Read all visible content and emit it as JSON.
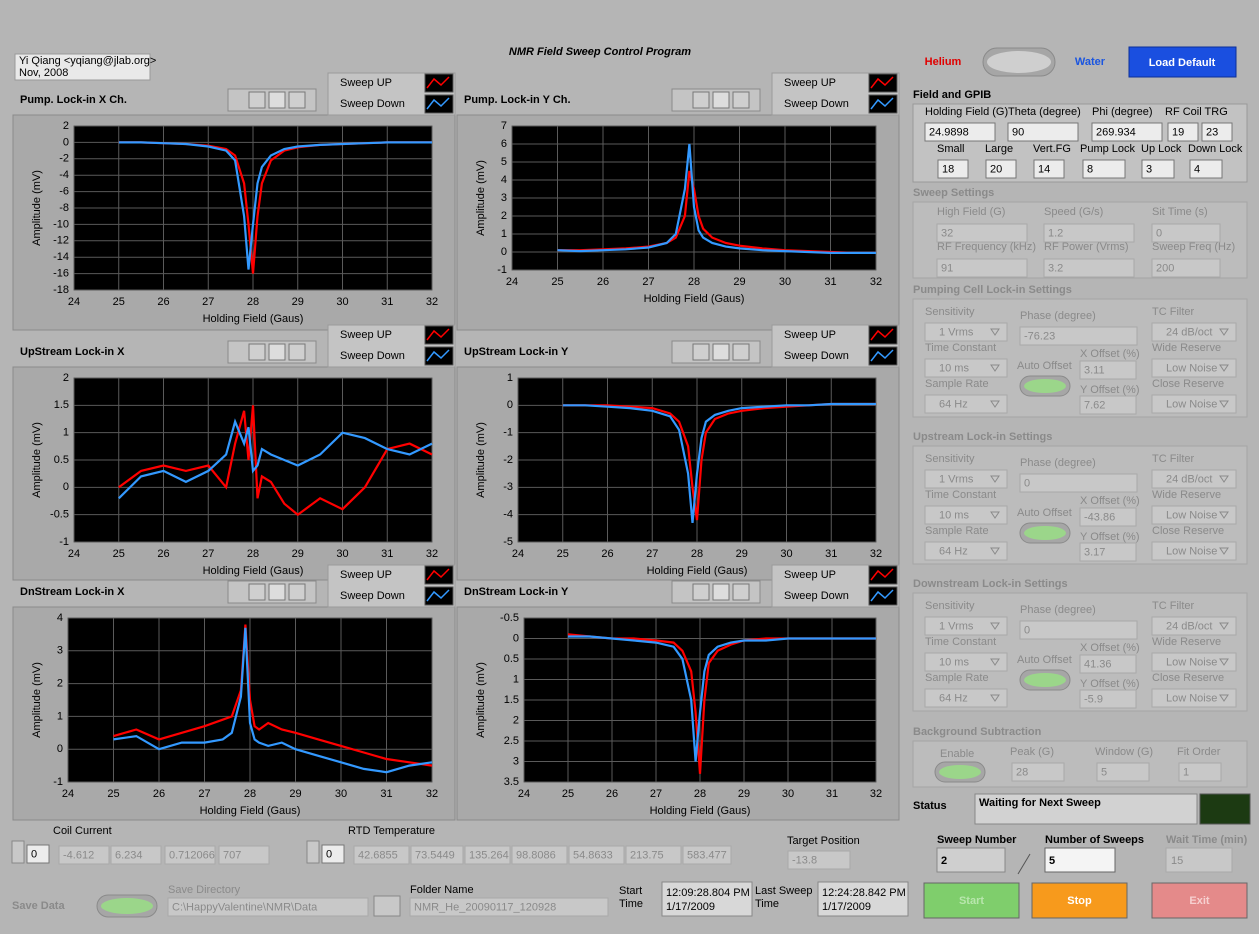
{
  "header": {
    "title": "NMR Field Sweep Control Program",
    "author": [
      "Yi Qiang <yqiang@jlab.org>",
      "Nov, 2008"
    ]
  },
  "mode": {
    "left": "Helium",
    "right": "Water"
  },
  "load_default": "Load Default",
  "graphs": [
    {
      "type": "line",
      "title": "Pump. Lock-in X Ch.",
      "x_label": "Holding Field (Gaus)",
      "y_label": "Amplitude (mV)",
      "x": [
        25,
        25.5,
        26,
        26.5,
        27,
        27.4,
        27.6,
        27.8,
        27.9,
        28,
        28.1,
        28.2,
        28.4,
        28.7,
        29,
        29.5,
        30,
        30.5,
        31,
        31.5,
        32
      ],
      "series": [
        {
          "name": "Sweep UP",
          "color": "#ff0000",
          "values": [
            0,
            0,
            -0.1,
            -0.2,
            -0.4,
            -0.8,
            -1.6,
            -5,
            -10,
            -16,
            -9,
            -5,
            -2.2,
            -1,
            -0.6,
            -0.3,
            -0.2,
            -0.1,
            0,
            0,
            0
          ]
        },
        {
          "name": "Sweep Down",
          "color": "#3399ff",
          "values": [
            0,
            0,
            -0.1,
            -0.2,
            -0.5,
            -1,
            -2.2,
            -9,
            -15.5,
            -10,
            -5,
            -3,
            -1.6,
            -0.8,
            -0.5,
            -0.3,
            -0.2,
            -0.1,
            0,
            0,
            0
          ]
        }
      ],
      "xlim": [
        24,
        32
      ],
      "xticks": [
        24,
        25,
        26,
        27,
        28,
        29,
        30,
        31,
        32
      ],
      "ylim": [
        -18,
        2
      ],
      "yticks": [
        -18,
        -16,
        -14,
        -12,
        -10,
        -8,
        -6,
        -4,
        -2,
        0,
        2
      ],
      "grid": true
    },
    {
      "type": "line",
      "title": "Pump. Lock-in Y Ch.",
      "x_label": "Holding Field (Gaus)",
      "y_label": "Amplitude (mV)",
      "x": [
        25,
        25.5,
        26,
        26.5,
        27,
        27.4,
        27.6,
        27.8,
        27.9,
        28,
        28.1,
        28.2,
        28.4,
        28.7,
        29,
        29.5,
        30,
        30.5,
        31,
        31.5,
        32
      ],
      "series": [
        {
          "name": "Sweep UP",
          "color": "#ff0000",
          "values": [
            0.1,
            0.1,
            0.15,
            0.2,
            0.3,
            0.5,
            0.8,
            2,
            4.5,
            3.5,
            2,
            1.3,
            0.8,
            0.5,
            0.35,
            0.2,
            0.1,
            0.05,
            0,
            -0.05,
            -0.05
          ]
        },
        {
          "name": "Sweep Down",
          "color": "#3399ff",
          "values": [
            0.1,
            0.05,
            0.1,
            0.15,
            0.25,
            0.5,
            1,
            3.5,
            6,
            2.5,
            1.2,
            0.8,
            0.5,
            0.3,
            0.2,
            0.1,
            0.05,
            0,
            -0.05,
            -0.05,
            -0.05
          ]
        }
      ],
      "xlim": [
        24,
        32
      ],
      "xticks": [
        24,
        25,
        26,
        27,
        28,
        29,
        30,
        31,
        32
      ],
      "ylim": [
        -1,
        7
      ],
      "yticks": [
        -1,
        0,
        1,
        2,
        3,
        4,
        5,
        6,
        7
      ],
      "grid": true
    },
    {
      "type": "line",
      "title": "UpStream Lock-in X",
      "x_label": "Holding Field (Gaus)",
      "y_label": "Amplitude (mV)",
      "x": [
        25,
        25.5,
        26,
        26.5,
        27,
        27.4,
        27.6,
        27.8,
        27.9,
        28,
        28.1,
        28.2,
        28.4,
        28.7,
        29,
        29.5,
        30,
        30.5,
        31,
        31.5,
        32
      ],
      "series": [
        {
          "name": "Sweep UP",
          "color": "#ff0000",
          "values": [
            0,
            0.3,
            0.4,
            0.3,
            0.4,
            0,
            0.8,
            1.4,
            0.5,
            1.5,
            -0.2,
            0.2,
            0.1,
            -0.3,
            -0.5,
            -0.2,
            -0.4,
            0,
            0.7,
            0.8,
            0.6
          ]
        },
        {
          "name": "Sweep Down",
          "color": "#3399ff",
          "values": [
            -0.2,
            0.2,
            0.3,
            0.1,
            0.3,
            0.6,
            1.2,
            0.8,
            1.1,
            0.3,
            0.4,
            0.7,
            0.6,
            0.5,
            0.4,
            0.6,
            1,
            0.9,
            0.7,
            0.6,
            0.8
          ]
        }
      ],
      "xlim": [
        24,
        32
      ],
      "xticks": [
        24,
        25,
        26,
        27,
        28,
        29,
        30,
        31,
        32
      ],
      "ylim": [
        -1,
        2
      ],
      "yticks": [
        -1,
        -0.5,
        0,
        0.5,
        1,
        1.5,
        2
      ],
      "grid": true
    },
    {
      "type": "line",
      "title": "UpStream Lock-in Y",
      "x_label": "Holding Field (Gaus)",
      "y_label": "Amplitude (mV)",
      "x": [
        25,
        25.5,
        26,
        26.5,
        27,
        27.4,
        27.6,
        27.8,
        27.9,
        28,
        28.1,
        28.2,
        28.4,
        28.7,
        29,
        29.5,
        30,
        30.5,
        31,
        31.5,
        32
      ],
      "series": [
        {
          "name": "Sweep UP",
          "color": "#ff0000",
          "values": [
            0,
            0,
            0,
            -0.05,
            -0.1,
            -0.3,
            -0.6,
            -1.5,
            -3,
            -4.2,
            -2,
            -1,
            -0.5,
            -0.3,
            -0.2,
            -0.1,
            -0.05,
            0,
            0.05,
            0.05,
            0.05
          ]
        },
        {
          "name": "Sweep Down",
          "color": "#3399ff",
          "values": [
            0,
            0,
            -0.05,
            -0.1,
            -0.2,
            -0.4,
            -0.9,
            -2.5,
            -4.3,
            -2.5,
            -1.2,
            -0.6,
            -0.35,
            -0.2,
            -0.1,
            -0.05,
            0,
            0,
            0.05,
            0.05,
            0.05
          ]
        }
      ],
      "xlim": [
        24,
        32
      ],
      "xticks": [
        24,
        25,
        26,
        27,
        28,
        29,
        30,
        31,
        32
      ],
      "ylim": [
        -5,
        1
      ],
      "yticks": [
        -5,
        -4,
        -3,
        -2,
        -1,
        0,
        1
      ],
      "grid": true
    },
    {
      "type": "line",
      "title": "DnStream Lock-in X",
      "x_label": "Holding Field (Gaus)",
      "y_label": "Amplitude (mV)",
      "x": [
        25,
        25.5,
        26,
        26.5,
        27,
        27.4,
        27.6,
        27.8,
        27.9,
        28,
        28.1,
        28.2,
        28.4,
        28.7,
        29,
        29.5,
        30,
        30.5,
        31,
        31.5,
        32
      ],
      "series": [
        {
          "name": "Sweep UP",
          "color": "#ff0000",
          "values": [
            0.4,
            0.6,
            0.3,
            0.5,
            0.7,
            0.9,
            1,
            1.8,
            3.8,
            1.5,
            0.7,
            0.6,
            0.8,
            0.6,
            0.5,
            0.3,
            0.1,
            -0.1,
            -0.3,
            -0.4,
            -0.5
          ]
        },
        {
          "name": "Sweep Down",
          "color": "#3399ff",
          "values": [
            0.3,
            0.4,
            0,
            0.2,
            0.2,
            0.3,
            0.5,
            1.6,
            3.7,
            0.8,
            0.3,
            0.2,
            0.1,
            0.2,
            0,
            -0.2,
            -0.4,
            -0.6,
            -0.7,
            -0.5,
            -0.4
          ]
        }
      ],
      "xlim": [
        24,
        32
      ],
      "xticks": [
        24,
        25,
        26,
        27,
        28,
        29,
        30,
        31,
        32
      ],
      "ylim": [
        -1,
        4
      ],
      "yticks": [
        -1,
        0,
        1,
        2,
        3,
        4
      ],
      "grid": true
    },
    {
      "type": "line",
      "title": "DnStream Lock-in Y",
      "x_label": "Holding Field (Gaus)",
      "y_label": "Amplitude (mV)",
      "x": [
        25,
        25.5,
        26,
        26.5,
        27,
        27.4,
        27.6,
        27.8,
        27.9,
        28,
        28.1,
        28.2,
        28.4,
        28.7,
        29,
        29.5,
        30,
        30.5,
        31,
        31.5,
        32
      ],
      "series": [
        {
          "name": "Sweep UP",
          "color": "#ff0000",
          "values": [
            -0.1,
            -0.05,
            0,
            0,
            0.05,
            0.1,
            0.3,
            0.8,
            1.8,
            3.3,
            1.5,
            0.6,
            0.3,
            0.15,
            0.05,
            0,
            0,
            0,
            0,
            0,
            0
          ]
        },
        {
          "name": "Sweep Down",
          "color": "#3399ff",
          "values": [
            -0.05,
            -0.05,
            0,
            0.05,
            0.1,
            0.2,
            0.5,
            1.5,
            3,
            1.8,
            0.8,
            0.4,
            0.2,
            0.1,
            0.05,
            0.05,
            0,
            0,
            0,
            0,
            0
          ]
        }
      ],
      "xlim": [
        24,
        32
      ],
      "xticks": [
        24,
        25,
        26,
        27,
        28,
        29,
        30,
        31,
        32
      ],
      "ylim": [
        3.5,
        -0.5
      ],
      "yticks": [
        -0.5,
        0,
        0.5,
        1,
        1.5,
        2,
        2.5,
        3,
        3.5
      ],
      "grid": true
    }
  ],
  "field_gpib": {
    "title": "Field and GPIB",
    "fields": [
      {
        "label": "Holding Field (G)",
        "value": "24.9898"
      },
      {
        "label": "Theta (degree)",
        "value": "90"
      },
      {
        "label": "Phi (degree)",
        "value": "269.934"
      },
      {
        "label": "Small",
        "value": "18"
      },
      {
        "label": "Large",
        "value": "20"
      },
      {
        "label": "Vert.FG",
        "value": "14"
      },
      {
        "label": "Pump Lock",
        "value": "8"
      },
      {
        "label": "Up Lock",
        "value": "3"
      },
      {
        "label": "Down Lock",
        "value": "4"
      }
    ],
    "rf_coil_trg": {
      "label": "RF Coil TRG",
      "values": [
        "19",
        "23"
      ]
    }
  },
  "sweep_settings": {
    "title": "Sweep Settings",
    "fields": [
      {
        "label": "High Field (G)",
        "value": "32"
      },
      {
        "label": "Speed (G/s)",
        "value": "1.2"
      },
      {
        "label": "Sit Time (s)",
        "value": "0"
      },
      {
        "label": "RF Frequency (kHz)",
        "value": "91"
      },
      {
        "label": "RF Power (Vrms)",
        "value": "3.2"
      },
      {
        "label": "Sweep Freq (Hz)",
        "value": "200"
      }
    ]
  },
  "lockins": [
    {
      "title": "Pumping Cell Lock-in Settings",
      "sensitivity": {
        "label": "Sensitivity",
        "value": "1 Vrms"
      },
      "time_constant": {
        "label": "Time Constant",
        "value": "10 ms"
      },
      "sample_rate": {
        "label": "Sample Rate",
        "value": "64 Hz"
      },
      "phase": {
        "label": "Phase (degree)",
        "value": "-76.23"
      },
      "auto_offset": "Auto Offset",
      "x_offset": {
        "label": "X Offset (%)",
        "value": "3.11"
      },
      "y_offset": {
        "label": "Y Offset (%)",
        "value": "7.62"
      },
      "tc_filter": {
        "label": "TC Filter",
        "value": "24 dB/oct"
      },
      "wide_reserve": {
        "label": "Wide Reserve",
        "value": "Low Noise"
      },
      "close_reserve": {
        "label": "Close Reserve",
        "value": "Low Noise"
      }
    },
    {
      "title": "Upstream Lock-in Settings",
      "sensitivity": {
        "label": "Sensitivity",
        "value": "1 Vrms"
      },
      "time_constant": {
        "label": "Time Constant",
        "value": "10 ms"
      },
      "sample_rate": {
        "label": "Sample Rate",
        "value": "64 Hz"
      },
      "phase": {
        "label": "Phase (degree)",
        "value": "0"
      },
      "auto_offset": "Auto Offset",
      "x_offset": {
        "label": "X Offset (%)",
        "value": "-43.86"
      },
      "y_offset": {
        "label": "Y Offset (%)",
        "value": "3.17"
      },
      "tc_filter": {
        "label": "TC Filter",
        "value": "24 dB/oct"
      },
      "wide_reserve": {
        "label": "Wide Reserve",
        "value": "Low Noise"
      },
      "close_reserve": {
        "label": "Close Reserve",
        "value": "Low Noise"
      }
    },
    {
      "title": "Downstream Lock-in Settings",
      "sensitivity": {
        "label": "Sensitivity",
        "value": "1 Vrms"
      },
      "time_constant": {
        "label": "Time Constant",
        "value": "10 ms"
      },
      "sample_rate": {
        "label": "Sample Rate",
        "value": "64 Hz"
      },
      "phase": {
        "label": "Phase (degree)",
        "value": "0"
      },
      "auto_offset": "Auto Offset",
      "x_offset": {
        "label": "X Offset (%)",
        "value": "41.36"
      },
      "y_offset": {
        "label": "Y Offset (%)",
        "value": "-5.9"
      },
      "tc_filter": {
        "label": "TC Filter",
        "value": "24 dB/oct"
      },
      "wide_reserve": {
        "label": "Wide Reserve",
        "value": "Low Noise"
      },
      "close_reserve": {
        "label": "Close Reserve",
        "value": "Low Noise"
      }
    }
  ],
  "background": {
    "title": "Background Subtraction",
    "enable": "Enable",
    "fields": [
      {
        "label": "Peak (G)",
        "value": "28"
      },
      {
        "label": "Window (G)",
        "value": "5"
      },
      {
        "label": "Fit Order",
        "value": "1"
      }
    ]
  },
  "status": {
    "label": "Status",
    "value": "Waiting for Next Sweep"
  },
  "sweep_number": {
    "label": "Sweep Number",
    "value": "2"
  },
  "number_of_sweeps": {
    "label": "Number of Sweeps",
    "value": "5"
  },
  "wait_time": {
    "label": "Wait Time (min)",
    "value": "15"
  },
  "buttons": {
    "start": "Start",
    "stop": "Stop",
    "exit": "Exit"
  },
  "coil_current": {
    "label": "Coil Current",
    "index": "0",
    "values": [
      "-4.612",
      "6.234",
      "0.712066",
      "707"
    ]
  },
  "rtd_temperature": {
    "label": "RTD Temperature",
    "index": "0",
    "values": [
      "42.6855",
      "73.5449",
      "135.264",
      "98.8086",
      "54.8633",
      "213.75",
      "583.477"
    ]
  },
  "target_position": {
    "label": "Target Position",
    "value": "-13.8"
  },
  "save_data": "Save Data",
  "save_directory": {
    "label": "Save Directory",
    "value": "C:\\HappyValentine\\NMR\\Data"
  },
  "folder_name": {
    "label": "Folder Name",
    "value": "NMR_He_20090117_120928"
  },
  "start_time": {
    "label": [
      "Start",
      "Time"
    ],
    "value": [
      "12:09:28.804 PM",
      "1/17/2009"
    ]
  },
  "last_sweep_time": {
    "label": [
      "Last Sweep",
      "Time"
    ],
    "value": [
      "12:24:28.842 PM",
      "1/17/2009"
    ]
  }
}
